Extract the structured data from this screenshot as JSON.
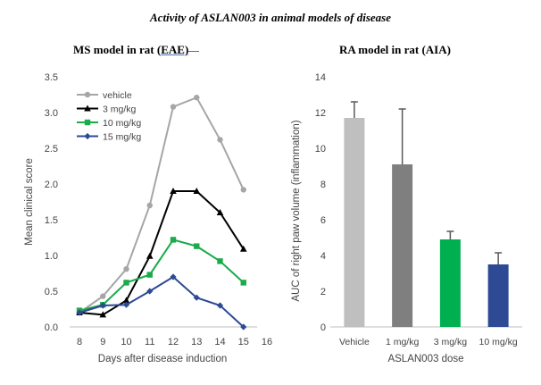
{
  "figure_title": "Activity of ASLAN003 in animal models of disease",
  "left_panel": {
    "title_prefix": "MS model in rat (",
    "title_underlined": "EAE)",
    "title_suffix": ""
  },
  "right_panel": {
    "title": "RA model in rat (AIA)"
  },
  "chart_data": [
    {
      "type": "line",
      "title": "MS model in rat (EAE)",
      "xlabel": "Days after disease induction",
      "ylabel": "Mean clinical score",
      "xlim": [
        8,
        16
      ],
      "ylim": [
        0,
        3.5
      ],
      "x_ticks": [
        8,
        9,
        10,
        11,
        12,
        13,
        14,
        15,
        16
      ],
      "y_ticks": [
        0.0,
        0.5,
        1.0,
        1.5,
        2.0,
        2.5,
        3.0,
        3.5
      ],
      "y_tick_labels": [
        "0.0",
        "0.5",
        "1.0",
        "1.5",
        "2.0",
        "2.5",
        "3.0",
        "3.5"
      ],
      "x": [
        8,
        9,
        10,
        11,
        12,
        13,
        14,
        15
      ],
      "legend_position": "top-left",
      "grid": false,
      "series": [
        {
          "name": "vehicle",
          "color": "#a6a6a6",
          "marker": "circle",
          "values": [
            0.2,
            0.43,
            0.81,
            1.7,
            3.08,
            3.21,
            2.62,
            1.92
          ]
        },
        {
          "name": "3 mg/kg",
          "color": "#000000",
          "marker": "triangle",
          "values": [
            0.2,
            0.17,
            0.37,
            0.99,
            1.9,
            1.9,
            1.6,
            1.09
          ]
        },
        {
          "name": "10 mg/kg",
          "color": "#1aab4b",
          "marker": "square",
          "values": [
            0.23,
            0.31,
            0.62,
            0.73,
            1.22,
            1.13,
            0.92,
            0.62
          ]
        },
        {
          "name": "15 mg/kg",
          "color": "#2e4a94",
          "marker": "diamond",
          "values": [
            0.2,
            0.3,
            0.31,
            0.5,
            0.7,
            0.41,
            0.3,
            0.0
          ]
        }
      ]
    },
    {
      "type": "bar",
      "title": "RA model in rat (AIA)",
      "xlabel": "ASLAN003 dose",
      "ylabel": "AUC of right paw volume (inflammation)",
      "ylim": [
        0,
        14
      ],
      "y_ticks": [
        0,
        2,
        4,
        6,
        8,
        10,
        12,
        14
      ],
      "categories": [
        "Vehicle",
        "1 mg/kg",
        "3 mg/kg",
        "10 mg/kg"
      ],
      "values": [
        11.7,
        9.1,
        4.9,
        3.5
      ],
      "errors": [
        0.9,
        3.1,
        0.45,
        0.65
      ],
      "colors": [
        "#bfbfbf",
        "#7f7f7f",
        "#00b050",
        "#2e4a94"
      ],
      "error_color": "#595959",
      "grid": false
    }
  ]
}
